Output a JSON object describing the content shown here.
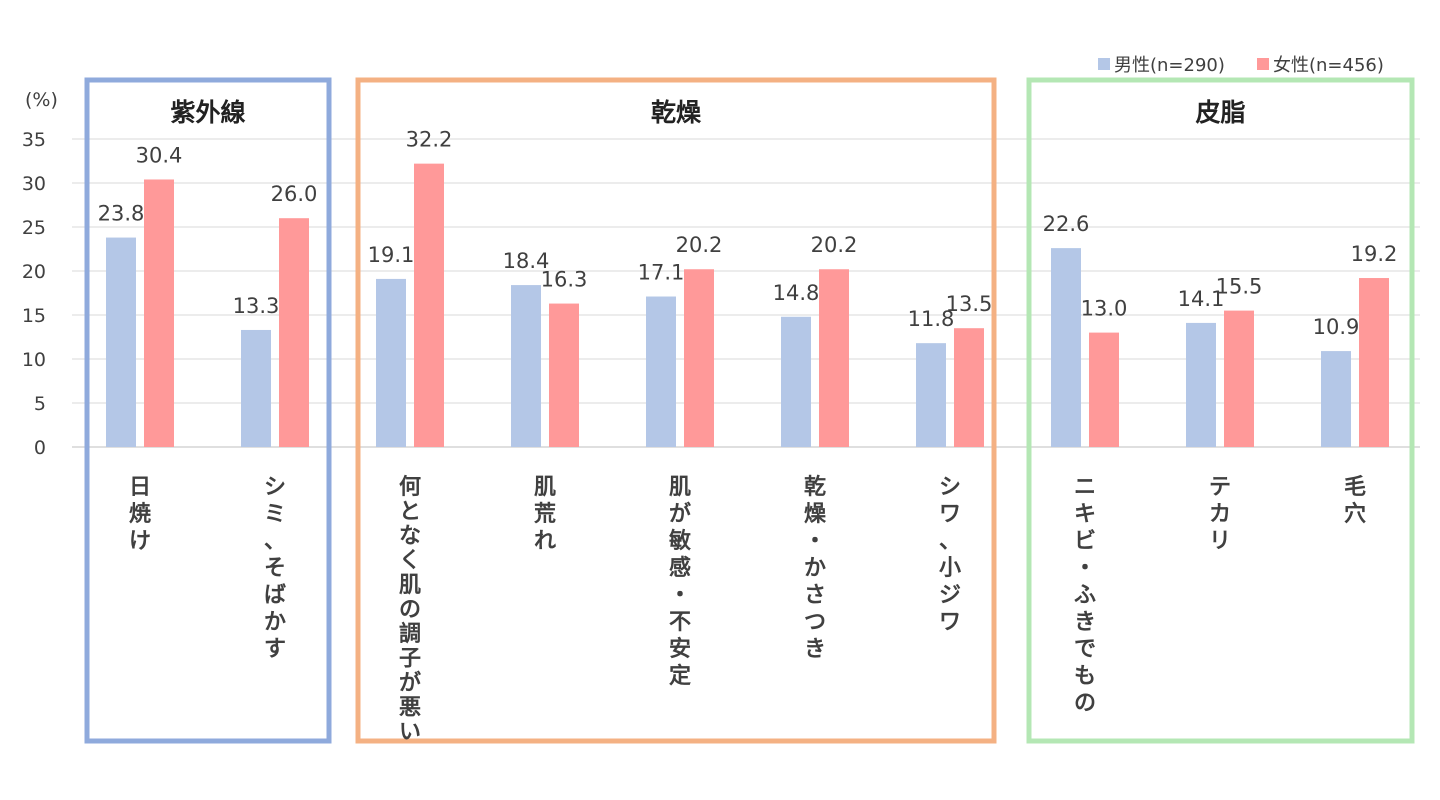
{
  "chart_data": {
    "type": "bar",
    "unit_label": "(%)",
    "ylim": [
      0,
      35
    ],
    "yticks": [
      0,
      5,
      10,
      15,
      20,
      25,
      30,
      35
    ],
    "grid": true,
    "legend_position": "top-right",
    "categories": [
      "日焼け",
      "シミ、そばかす",
      "何となく肌の調子が悪い",
      "肌荒れ",
      "肌が敏感・不安定",
      "乾燥・かさつき",
      "シワ、小ジワ",
      "ニキビ・ふきでもの",
      "テカリ",
      "毛穴"
    ],
    "series": [
      {
        "name": "男性(n=290)",
        "color": "#b4c7e7",
        "values": [
          23.8,
          13.3,
          19.1,
          18.4,
          17.1,
          14.8,
          11.8,
          22.6,
          14.1,
          10.9
        ]
      },
      {
        "name": "女性(n=456)",
        "color": "#ff9999",
        "values": [
          30.4,
          26.0,
          32.2,
          16.3,
          20.2,
          20.2,
          13.5,
          13.0,
          15.5,
          19.2
        ]
      }
    ],
    "value_labels": [
      [
        "23.8",
        "13.3",
        "19.1",
        "18.4",
        "17.1",
        "14.8",
        "11.8",
        "22.6",
        "14.1",
        "10.9"
      ],
      [
        "30.4",
        "26.0",
        "32.2",
        "16.3",
        "20.2",
        "20.2",
        "13.5",
        "13.0",
        "15.5",
        "19.2"
      ]
    ],
    "groups": [
      {
        "title": "紫外線",
        "color": "#8faadc",
        "from": 0,
        "to": 1
      },
      {
        "title": "乾燥",
        "color": "#f4b183",
        "from": 2,
        "to": 6
      },
      {
        "title": "皮脂",
        "color": "#b4e7b4",
        "from": 7,
        "to": 9
      }
    ]
  }
}
